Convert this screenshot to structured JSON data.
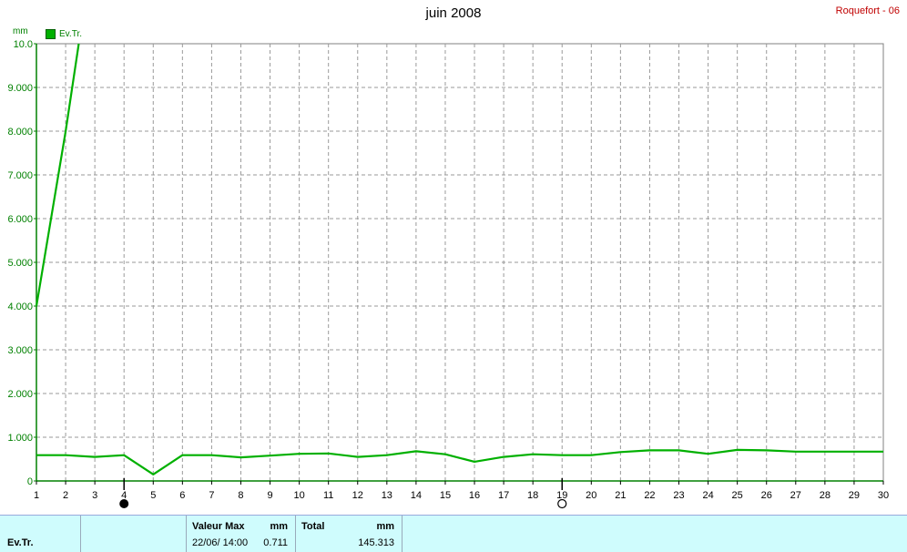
{
  "header": {
    "title": "juin 2008",
    "station": "Roquefort - 06"
  },
  "legend": {
    "label": "Ev.Tr.",
    "color": "#00b000"
  },
  "chart_data": {
    "type": "line",
    "title": "juin 2008",
    "ylabel": "mm",
    "ylim": [
      0,
      10
    ],
    "xlim": [
      1,
      30
    ],
    "x_ticks": [
      "1",
      "2",
      "3",
      "4",
      "5",
      "6",
      "7",
      "8",
      "9",
      "10",
      "11",
      "12",
      "13",
      "14",
      "15",
      "16",
      "17",
      "18",
      "19",
      "20",
      "21",
      "22",
      "23",
      "24",
      "25",
      "26",
      "27",
      "28",
      "29",
      "30"
    ],
    "y_ticks": [
      "0",
      "1.000",
      "2.000",
      "3.000",
      "4.000",
      "5.000",
      "6.000",
      "7.000",
      "8.000",
      "9.000",
      "10.0"
    ],
    "grid": true,
    "moon_phases": [
      {
        "day": 4,
        "phase": "new-moon"
      },
      {
        "day": 19,
        "phase": "full-moon"
      }
    ],
    "series": [
      {
        "name": "Ev.Tr.",
        "color": "#00b000",
        "x": [
          1,
          2,
          2.45
        ],
        "y": [
          4.0,
          8.0,
          10.0
        ]
      },
      {
        "name": "Ev.Tr.",
        "color": "#00b000",
        "x": [
          1,
          2,
          3,
          4,
          5,
          6,
          7,
          8,
          9,
          10,
          11,
          12,
          13,
          14,
          15,
          16,
          17,
          18,
          19,
          20,
          21,
          22,
          23,
          24,
          25,
          26,
          27,
          28,
          29,
          30
        ],
        "y": [
          0.59,
          0.59,
          0.55,
          0.59,
          0.15,
          0.59,
          0.59,
          0.54,
          0.58,
          0.62,
          0.63,
          0.55,
          0.59,
          0.68,
          0.61,
          0.44,
          0.55,
          0.61,
          0.59,
          0.59,
          0.66,
          0.7,
          0.7,
          0.62,
          0.71,
          0.7,
          0.67,
          0.67,
          0.67,
          0.67
        ]
      }
    ]
  },
  "footer": {
    "series_name": "Ev.Tr.",
    "max_label": "Valeur Max",
    "max_unit": "mm",
    "max_date": "22/06/ 14:00",
    "max_value": "0.711",
    "total_label": "Total",
    "total_unit": "mm",
    "total_value": "145.313"
  }
}
